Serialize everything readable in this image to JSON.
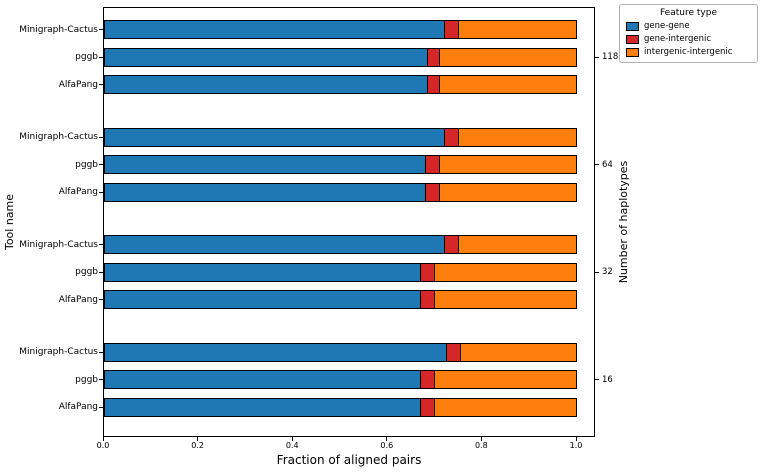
{
  "chart_data": {
    "type": "bar",
    "orientation": "horizontal",
    "stacked": true,
    "title": "",
    "xlabel": "Fraction of aligned pairs",
    "ylabel": "Tool name",
    "ylabel_right": "Number of haplotypes",
    "xlim": [
      0,
      1.04
    ],
    "xticks": [
      0.0,
      0.2,
      0.4,
      0.6,
      0.8,
      1.0
    ],
    "grid": false,
    "series_labels": [
      "gene-gene",
      "gene-intergenic",
      "intergenic-intergenic"
    ],
    "legend": {
      "title": "Feature type",
      "position": "top-right-outside",
      "entries": [
        {
          "label": "gene-gene",
          "color": "#1f77b4"
        },
        {
          "label": "gene-intergenic",
          "color": "#d62728"
        },
        {
          "label": "intergenic-intergenic",
          "color": "#ff7f0e"
        }
      ]
    },
    "groups": [
      {
        "haplotypes": "118",
        "bars": [
          {
            "tool": "Minigraph-Cactus",
            "values": [
              0.72,
              0.03,
              0.25
            ]
          },
          {
            "tool": "pggb",
            "values": [
              0.685,
              0.025,
              0.29
            ]
          },
          {
            "tool": "AlfaPang",
            "values": [
              0.685,
              0.025,
              0.29
            ]
          }
        ]
      },
      {
        "haplotypes": "64",
        "bars": [
          {
            "tool": "Minigraph-Cactus",
            "values": [
              0.72,
              0.03,
              0.25
            ]
          },
          {
            "tool": "pggb",
            "values": [
              0.68,
              0.03,
              0.29
            ]
          },
          {
            "tool": "AlfaPang",
            "values": [
              0.68,
              0.03,
              0.29
            ]
          }
        ]
      },
      {
        "haplotypes": "32",
        "bars": [
          {
            "tool": "Minigraph-Cactus",
            "values": [
              0.72,
              0.03,
              0.25
            ]
          },
          {
            "tool": "pggb",
            "values": [
              0.67,
              0.03,
              0.3
            ]
          },
          {
            "tool": "AlfaPang",
            "values": [
              0.67,
              0.03,
              0.3
            ]
          }
        ]
      },
      {
        "haplotypes": "16",
        "bars": [
          {
            "tool": "Minigraph-Cactus",
            "values": [
              0.725,
              0.03,
              0.245
            ]
          },
          {
            "tool": "pggb",
            "values": [
              0.67,
              0.03,
              0.3
            ]
          },
          {
            "tool": "AlfaPang",
            "values": [
              0.67,
              0.03,
              0.3
            ]
          }
        ]
      }
    ]
  }
}
